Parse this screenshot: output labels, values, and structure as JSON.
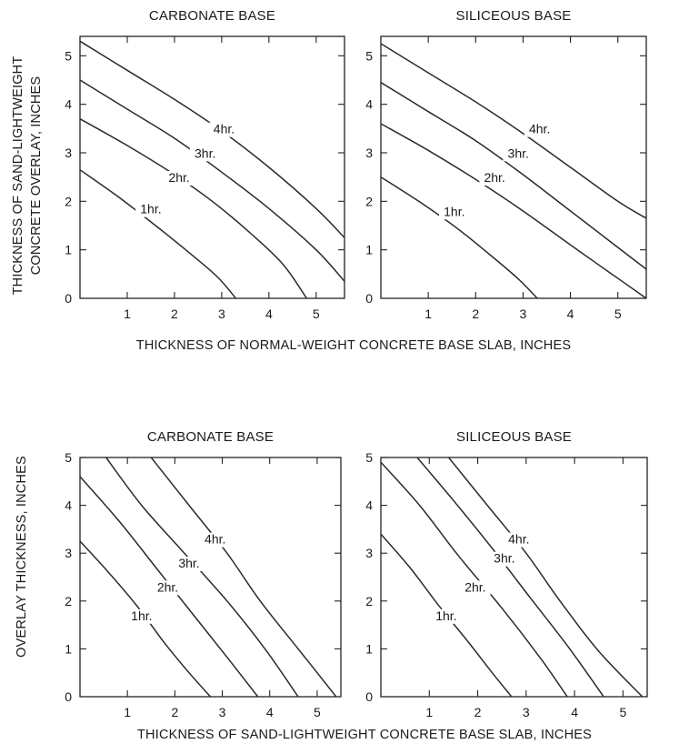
{
  "figure": {
    "top_xlabel": "THICKNESS OF NORMAL-WEIGHT CONCRETE BASE SLAB, INCHES",
    "top_ylabel_line1": "THICKNESS OF SAND-LIGHTWEIGHT",
    "top_ylabel_line2": "CONCRETE OVERLAY, INCHES",
    "bottom_xlabel": "THICKNESS OF SAND-LIGHTWEIGHT CONCRETE BASE SLAB, INCHES",
    "bottom_ylabel": "OVERLAY THICKNESS, INCHES"
  },
  "chart_data": [
    {
      "type": "line",
      "title": "CARBONATE BASE",
      "xlim": [
        0,
        5.6
      ],
      "ylim": [
        0,
        5.4
      ],
      "xticks": [
        1,
        2,
        3,
        4,
        5
      ],
      "yticks": [
        0,
        1,
        2,
        3,
        4,
        5
      ],
      "series": [
        {
          "name": "1hr.",
          "x": [
            0,
            0.8,
            1.6,
            2.3,
            2.9,
            3.3
          ],
          "y": [
            2.65,
            2.1,
            1.5,
            0.95,
            0.45,
            0.0
          ]
        },
        {
          "name": "2hr.",
          "x": [
            0,
            1.0,
            2.0,
            2.8,
            3.6,
            4.3,
            4.8
          ],
          "y": [
            3.7,
            3.15,
            2.55,
            2.0,
            1.35,
            0.7,
            0.0
          ]
        },
        {
          "name": "3hr.",
          "x": [
            0,
            1.0,
            2.0,
            3.0,
            4.0,
            5.0,
            5.6
          ],
          "y": [
            4.5,
            3.9,
            3.3,
            2.6,
            1.85,
            1.0,
            0.35
          ]
        },
        {
          "name": "4hr.",
          "x": [
            0,
            1.0,
            2.0,
            3.0,
            4.0,
            5.0,
            5.6
          ],
          "y": [
            5.3,
            4.7,
            4.1,
            3.45,
            2.7,
            1.85,
            1.25
          ]
        }
      ],
      "labels": [
        {
          "text": "1hr.",
          "x": 1.5,
          "y": 1.75
        },
        {
          "text": "2hr.",
          "x": 2.1,
          "y": 2.4
        },
        {
          "text": "3hr.",
          "x": 2.65,
          "y": 2.9
        },
        {
          "text": "4hr.",
          "x": 3.05,
          "y": 3.4
        }
      ]
    },
    {
      "type": "line",
      "title": "SILICEOUS BASE",
      "xlim": [
        0,
        5.6
      ],
      "ylim": [
        0,
        5.4
      ],
      "xticks": [
        1,
        2,
        3,
        4,
        5
      ],
      "yticks": [
        0,
        1,
        2,
        3,
        4,
        5
      ],
      "series": [
        {
          "name": "1hr.",
          "x": [
            0,
            0.8,
            1.6,
            2.3,
            2.9,
            3.3
          ],
          "y": [
            2.5,
            2.0,
            1.45,
            0.9,
            0.4,
            0.0
          ]
        },
        {
          "name": "2hr.",
          "x": [
            0,
            1.0,
            2.0,
            3.0,
            4.0,
            4.8,
            5.6
          ],
          "y": [
            3.6,
            3.05,
            2.45,
            1.8,
            1.1,
            0.55,
            0.0
          ]
        },
        {
          "name": "3hr.",
          "x": [
            0,
            1.0,
            2.0,
            3.0,
            4.0,
            5.0,
            5.6
          ],
          "y": [
            4.45,
            3.85,
            3.25,
            2.55,
            1.8,
            1.05,
            0.6
          ]
        },
        {
          "name": "4hr.",
          "x": [
            0,
            1.0,
            2.0,
            3.0,
            4.0,
            5.0,
            5.6
          ],
          "y": [
            5.25,
            4.65,
            4.05,
            3.4,
            2.7,
            2.0,
            1.65
          ]
        }
      ],
      "labels": [
        {
          "text": "1hr.",
          "x": 1.55,
          "y": 1.7
        },
        {
          "text": "2hr.",
          "x": 2.4,
          "y": 2.4
        },
        {
          "text": "3hr.",
          "x": 2.9,
          "y": 2.9
        },
        {
          "text": "4hr.",
          "x": 3.35,
          "y": 3.4
        }
      ]
    },
    {
      "type": "line",
      "title": "CARBONATE BASE",
      "xlim": [
        0,
        5.5
      ],
      "ylim": [
        0,
        5
      ],
      "xticks": [
        1,
        2,
        3,
        4,
        5
      ],
      "yticks": [
        0,
        1,
        2,
        3,
        4,
        5
      ],
      "series": [
        {
          "name": "1hr.",
          "x": [
            0,
            0.6,
            1.2,
            1.8,
            2.3,
            2.75
          ],
          "y": [
            3.25,
            2.6,
            1.9,
            1.1,
            0.5,
            0.0
          ]
        },
        {
          "name": "2hr.",
          "x": [
            0,
            0.8,
            1.6,
            2.4,
            3.2,
            3.75
          ],
          "y": [
            4.6,
            3.7,
            2.7,
            1.7,
            0.7,
            0.0
          ]
        },
        {
          "name": "3hr.",
          "x": [
            0.55,
            1.3,
            2.2,
            3.1,
            3.9,
            4.6
          ],
          "y": [
            5.0,
            4.0,
            3.0,
            2.0,
            1.0,
            0.0
          ]
        },
        {
          "name": "4hr.",
          "x": [
            1.5,
            2.3,
            3.1,
            3.8,
            4.6,
            5.4
          ],
          "y": [
            5.0,
            4.0,
            3.0,
            2.0,
            1.0,
            0.0
          ]
        }
      ],
      "labels": [
        {
          "text": "1hr.",
          "x": 1.3,
          "y": 1.6
        },
        {
          "text": "2hr.",
          "x": 1.85,
          "y": 2.2
        },
        {
          "text": "3hr.",
          "x": 2.3,
          "y": 2.7
        },
        {
          "text": "4hr.",
          "x": 2.85,
          "y": 3.2
        }
      ]
    },
    {
      "type": "line",
      "title": "SILICEOUS BASE",
      "xlim": [
        0,
        5.5
      ],
      "ylim": [
        0,
        5
      ],
      "xticks": [
        1,
        2,
        3,
        4,
        5
      ],
      "yticks": [
        0,
        1,
        2,
        3,
        4,
        5
      ],
      "series": [
        {
          "name": "1hr.",
          "x": [
            0,
            0.6,
            1.2,
            1.8,
            2.3,
            2.7
          ],
          "y": [
            3.4,
            2.7,
            1.9,
            1.15,
            0.5,
            0.0
          ]
        },
        {
          "name": "2hr.",
          "x": [
            0,
            0.8,
            1.6,
            2.5,
            3.3,
            3.85
          ],
          "y": [
            4.9,
            4.0,
            2.95,
            1.85,
            0.8,
            0.0
          ]
        },
        {
          "name": "3hr.",
          "x": [
            0.75,
            1.5,
            2.3,
            3.1,
            3.9,
            4.6
          ],
          "y": [
            5.0,
            4.1,
            3.1,
            2.05,
            1.0,
            0.0
          ]
        },
        {
          "name": "4hr.",
          "x": [
            1.4,
            2.2,
            3.0,
            3.7,
            4.5,
            5.4
          ],
          "y": [
            5.0,
            4.0,
            3.0,
            2.0,
            0.95,
            0.0
          ]
        }
      ],
      "labels": [
        {
          "text": "1hr.",
          "x": 1.35,
          "y": 1.6
        },
        {
          "text": "2hr.",
          "x": 1.95,
          "y": 2.2
        },
        {
          "text": "3hr.",
          "x": 2.55,
          "y": 2.8
        },
        {
          "text": "4hr.",
          "x": 2.85,
          "y": 3.2
        }
      ]
    }
  ]
}
